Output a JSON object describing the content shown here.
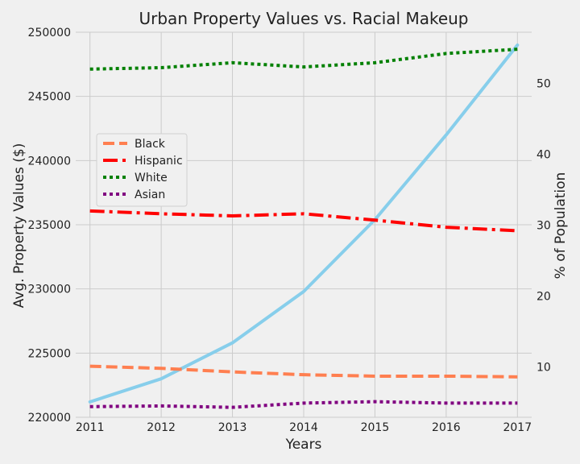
{
  "chart_data": {
    "type": "line",
    "title": "Urban Property Values vs. Racial Makeup",
    "xlabel": "Years",
    "ylabel_left": "Avg. Property Values ($)",
    "ylabel_right": "% of Population",
    "x": [
      2011,
      2012,
      2013,
      2014,
      2015,
      2016,
      2017
    ],
    "x_tick_labels": [
      "2011",
      "2012",
      "2013",
      "2014",
      "2015",
      "2016",
      "2017"
    ],
    "ylim_left": [
      220000,
      250000
    ],
    "y_left_ticks": [
      220000,
      225000,
      230000,
      235000,
      240000,
      245000,
      250000
    ],
    "y_left_tick_labels": [
      "220000",
      "225000",
      "230000",
      "235000",
      "240000",
      "245000",
      "250000"
    ],
    "ylim_right": [
      2.9,
      57.2
    ],
    "y_right_ticks": [
      10,
      20,
      30,
      40,
      50
    ],
    "y_right_tick_labels": [
      "10",
      "20",
      "30",
      "40",
      "50"
    ],
    "property_series": {
      "name": "Avg. Property Value",
      "axis": "left",
      "color": "#87ceeb",
      "values": [
        221200,
        223000,
        225800,
        229800,
        235400,
        242000,
        249000
      ]
    },
    "series": [
      {
        "name": "Black",
        "axis": "right",
        "color": "#ff7f50",
        "style": "dashed",
        "values": [
          10.1,
          9.8,
          9.3,
          8.9,
          8.7,
          8.7,
          8.6
        ]
      },
      {
        "name": "Hispanic",
        "axis": "right",
        "color": "#ff0000",
        "style": "dashdot",
        "values": [
          32.0,
          31.6,
          31.3,
          31.6,
          30.7,
          29.7,
          29.2
        ]
      },
      {
        "name": "White",
        "axis": "right",
        "color": "#008000",
        "style": "dotted",
        "values": [
          52.0,
          52.2,
          52.9,
          52.3,
          52.9,
          54.2,
          54.8
        ]
      },
      {
        "name": "Asian",
        "axis": "right",
        "color": "#800080",
        "style": "dotted",
        "values": [
          4.4,
          4.5,
          4.3,
          4.9,
          5.1,
          4.9,
          4.9
        ]
      }
    ],
    "legend": {
      "position": "center-left",
      "entries": [
        "Black",
        "Hispanic",
        "White",
        "Asian"
      ]
    },
    "grid": true
  }
}
